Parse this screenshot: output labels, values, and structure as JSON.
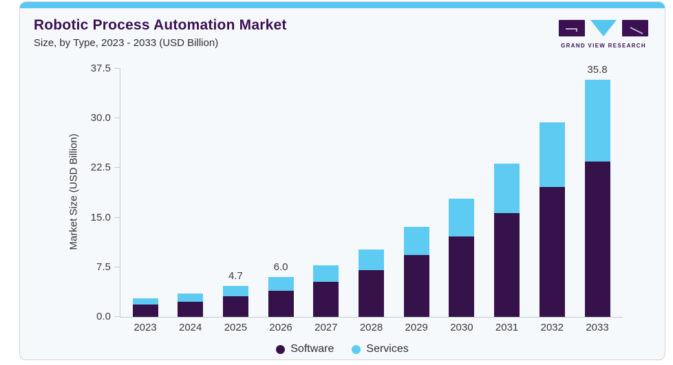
{
  "header": {
    "title": "Robotic Process Automation Market",
    "subtitle": "Size, by Type, 2023 - 2033 (USD Billion)"
  },
  "logo": {
    "text": "GRAND VIEW RESEARCH",
    "block_color": "#3c1053",
    "triangle_color": "#55c5f2"
  },
  "colors": {
    "accent_strip": "#58c7f1",
    "card_background": "#f5f9fc",
    "card_border": "#cdd3d9",
    "axis_line": "#c6cbd0",
    "title_text": "#3c1053",
    "body_text": "#3b3b3b",
    "software": "#351249",
    "services": "#5ecbf3"
  },
  "chart_data": {
    "type": "bar",
    "stacked": true,
    "title": "Robotic Process Automation Market",
    "subtitle": "Size, by Type, 2023 - 2033 (USD Billion)",
    "xlabel": "",
    "ylabel": "Market Size (USD Billion)",
    "categories": [
      "2023",
      "2024",
      "2025",
      "2026",
      "2027",
      "2028",
      "2029",
      "2030",
      "2031",
      "2032",
      "2033"
    ],
    "series": [
      {
        "name": "Software",
        "color": "#351249",
        "values": [
          1.9,
          2.3,
          3.1,
          4.0,
          5.3,
          7.1,
          9.3,
          12.2,
          15.7,
          19.6,
          23.5
        ]
      },
      {
        "name": "Services",
        "color": "#5ecbf3",
        "values": [
          0.9,
          1.2,
          1.6,
          2.0,
          2.5,
          3.1,
          4.3,
          5.7,
          7.5,
          9.8,
          12.3
        ]
      }
    ],
    "totals": [
      2.8,
      3.5,
      4.7,
      6.0,
      7.8,
      10.2,
      13.6,
      17.9,
      23.2,
      29.4,
      35.8
    ],
    "bar_labels": [
      "",
      "",
      "4.7",
      "6.0",
      "",
      "",
      "",
      "",
      "",
      "",
      "35.8"
    ],
    "ylim": [
      0,
      37.5
    ],
    "yticks": [
      0,
      7.5,
      15,
      22.5,
      30,
      37.5
    ],
    "ytick_labels": [
      "0.0",
      "7.5",
      "15.0",
      "22.5",
      "30.0",
      "37.5"
    ],
    "grid": false,
    "legend_position": "bottom"
  },
  "legend": {
    "items": [
      {
        "label": "Software",
        "color": "#351249"
      },
      {
        "label": "Services",
        "color": "#5ecbf3"
      }
    ]
  }
}
